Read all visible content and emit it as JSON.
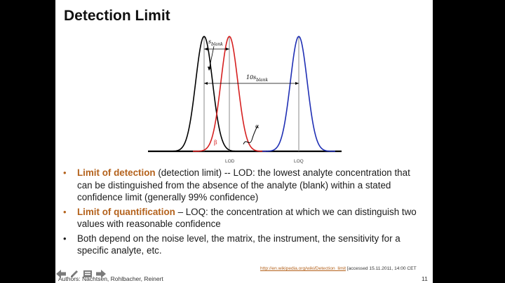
{
  "slide": {
    "title": "Detection Limit",
    "diagram": {
      "labels": {
        "s_blank": "s",
        "s_blank_sub": "blank",
        "ten_s_blank": "10s",
        "ten_s_blank_sub": "blank",
        "alpha": "α",
        "beta": "β",
        "lod": "LOD",
        "loq": "LOQ"
      },
      "colors": {
        "blank": "#000000",
        "lod": "#d62020",
        "loq": "#1f2fb4",
        "grey_line": "#888888"
      }
    },
    "bullets": [
      {
        "term": "Limit of detection",
        "text": " (detection limit) -- LOD: the lowest analyte concentration that can be distinguished from the absence of the analyte (blank) within a stated confidence limit (generally 99% confidence)"
      },
      {
        "term": "Limit of quantification",
        "text": " – LOQ: the concentration at which we can distinguish two values with reasonable confidence"
      },
      {
        "term": "",
        "text": "Both depend on the noise level, the matrix, the instrument, the sensitivity for a specific analyte, etc."
      }
    ],
    "source_link": "http://en.wikipedia.org/wiki/Detection_limit",
    "source_note": " [accessed 15.11.2011, 14:00 CET",
    "authors": "Authors: Nachtsen, Rohlbacher, Reinert",
    "page_number": "11"
  },
  "nav": {
    "icons": [
      "arrow-left-icon",
      "pencil-icon",
      "slides-icon",
      "arrow-right-icon"
    ]
  }
}
